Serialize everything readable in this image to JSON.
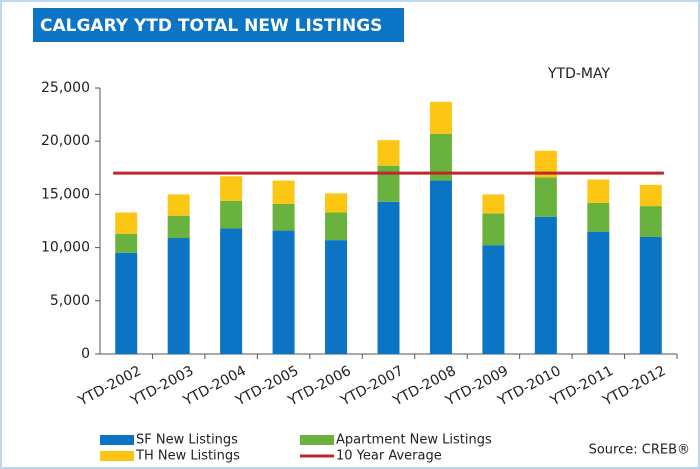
{
  "chart_data": {
    "type": "stacked_bar",
    "title": "CALGARY YTD TOTAL NEW LISTINGS",
    "annotation": "YTD-MAY",
    "source": "Source: CREB®",
    "categories": [
      "YTD-2002",
      "YTD-2003",
      "YTD-2004",
      "YTD-2005",
      "YTD-2006",
      "YTD-2007",
      "YTD-2008",
      "YTD-2009",
      "YTD-2010",
      "YTD-2011",
      "YTD-2012"
    ],
    "series": [
      {
        "name": "SF New Listings",
        "color": "#0b74c4",
        "values": [
          9500,
          10900,
          11800,
          11600,
          10700,
          14300,
          16300,
          10200,
          12900,
          11500,
          11000
        ]
      },
      {
        "name": "Apartment New Listings",
        "color": "#6ab23e",
        "values": [
          1800,
          2100,
          2600,
          2500,
          2600,
          3400,
          4400,
          3000,
          3700,
          2700,
          2900
        ]
      },
      {
        "name": "TH New Listings",
        "color": "#fcc614",
        "values": [
          2000,
          2000,
          2300,
          2200,
          1800,
          2400,
          3000,
          1800,
          2500,
          2200,
          2000
        ]
      }
    ],
    "reference_line": {
      "name": "10 Year Average",
      "value": 17000,
      "color": "#c0272d"
    },
    "ylim": [
      0,
      25000
    ],
    "yticks": [
      {
        "value": 0,
        "label": "0"
      },
      {
        "value": 5000,
        "label": "5,000"
      },
      {
        "value": 10000,
        "label": "10,000"
      },
      {
        "value": 15000,
        "label": "15,000"
      },
      {
        "value": 20000,
        "label": "20,000"
      },
      {
        "value": 25000,
        "label": "25,000"
      }
    ]
  }
}
